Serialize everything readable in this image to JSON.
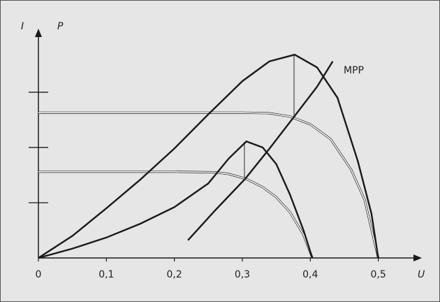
{
  "chart_data": {
    "type": "line",
    "x_label": "U",
    "y_label": "I",
    "y2_label": "P",
    "annotation": "MPP",
    "xlim": [
      0,
      0.56
    ],
    "xticks": [
      0,
      {
        "value": 0.1,
        "label": "0,1"
      },
      {
        "value": 0.2,
        "label": "0,2"
      },
      {
        "value": 0.3,
        "label": "0,3"
      },
      {
        "value": 0.4,
        "label": "0,4"
      },
      {
        "value": 0.5,
        "label": "0,5"
      }
    ],
    "ylim": [
      0,
      4.1
    ],
    "yticks": [
      1,
      2,
      3
    ],
    "series": [
      {
        "style": "outlined",
        "color": "#ffffff",
        "x": [
          0,
          0.1,
          0.2,
          0.3,
          0.34,
          0.37,
          0.4,
          0.43,
          0.46,
          0.48,
          0.5
        ],
        "values": [
          2.63,
          2.63,
          2.63,
          2.63,
          2.62,
          2.56,
          2.42,
          2.15,
          1.6,
          1.05,
          0
        ]
      },
      {
        "style": "outlined",
        "color": "#ffffff",
        "x": [
          0,
          0.1,
          0.2,
          0.26,
          0.28,
          0.306,
          0.33,
          0.35,
          0.37,
          0.39,
          0.403
        ],
        "values": [
          1.56,
          1.56,
          1.56,
          1.55,
          1.52,
          1.43,
          1.28,
          1.1,
          0.83,
          0.42,
          0
        ]
      },
      {
        "style": "solid",
        "color": "#1a1a1a",
        "x": [
          0,
          0.05,
          0.1,
          0.15,
          0.2,
          0.25,
          0.3,
          0.34,
          0.377,
          0.41,
          0.44,
          0.47,
          0.49,
          0.5
        ],
        "values": [
          0,
          0.4,
          0.9,
          1.42,
          1.98,
          2.6,
          3.2,
          3.56,
          3.68,
          3.45,
          2.9,
          1.75,
          0.8,
          0
        ]
      },
      {
        "style": "solid",
        "color": "#1a1a1a",
        "x": [
          0,
          0.05,
          0.1,
          0.15,
          0.2,
          0.25,
          0.28,
          0.306,
          0.33,
          0.35,
          0.37,
          0.39,
          0.403
        ],
        "values": [
          0,
          0.17,
          0.37,
          0.62,
          0.92,
          1.35,
          1.8,
          2.11,
          2.0,
          1.7,
          1.15,
          0.5,
          0
        ]
      },
      {
        "style": "solid",
        "color": "#1a1a1a",
        "x": [
          0.22,
          0.26,
          0.304,
          0.34,
          0.377,
          0.41,
          0.433
        ],
        "values": [
          0.32,
          0.86,
          1.43,
          1.98,
          2.57,
          3.1,
          3.56
        ]
      }
    ]
  }
}
